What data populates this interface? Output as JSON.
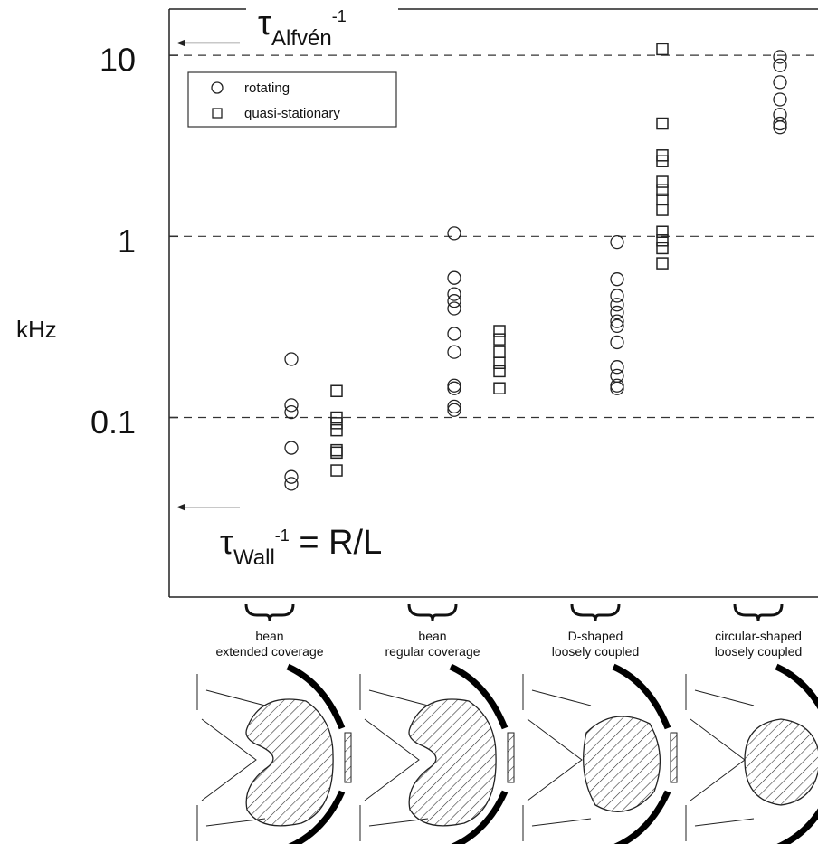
{
  "chart_data": {
    "type": "scatter",
    "ylabel": "kHz",
    "log_y": true,
    "ylim": [
      0.0102,
      18
    ],
    "yticks": [
      10,
      1,
      0.1
    ],
    "grid": true,
    "legend_position": "upper left",
    "categories": [
      [
        "bean",
        "extended coverage"
      ],
      [
        "bean",
        "regular coverage"
      ],
      [
        "D-shaped",
        "loosely coupled"
      ],
      [
        "circular-shaped",
        "loosely coupled"
      ]
    ],
    "series": [
      {
        "name": "rotating",
        "marker": "circle",
        "color": "#222222",
        "values": [
          [
            0.21,
            0.117,
            0.107,
            0.068,
            0.047,
            0.043
          ],
          [
            1.04,
            0.59,
            0.48,
            0.44,
            0.4,
            0.29,
            0.23,
            0.15,
            0.145,
            0.115,
            0.11
          ],
          [
            0.93,
            0.58,
            0.47,
            0.42,
            0.38,
            0.34,
            0.32,
            0.26,
            0.19,
            0.17,
            0.15,
            0.145
          ],
          [
            9.8,
            8.8,
            7.1,
            5.7,
            4.7,
            4.2,
            4.0
          ]
        ]
      },
      {
        "name": "quasi-stationary",
        "marker": "square",
        "color": "#222222",
        "values": [
          [
            0.14,
            0.1,
            0.093,
            0.085,
            0.066,
            0.064,
            0.051
          ],
          [
            0.3,
            0.27,
            0.23,
            0.2,
            0.18,
            0.145
          ],
          [
            10.8,
            4.2,
            2.8,
            2.6,
            2.0,
            1.8,
            1.6,
            1.4,
            1.06,
            0.95,
            0.86,
            0.71
          ],
          []
        ]
      }
    ],
    "annotations": [
      {
        "text": "τ",
        "sub": "Alfvén",
        "sup": "-1",
        "value": 11.7
      },
      {
        "text": "τ",
        "sub": "Wall",
        "sup": "-1",
        "suffix": " = R/L",
        "value": 0.032
      }
    ]
  }
}
